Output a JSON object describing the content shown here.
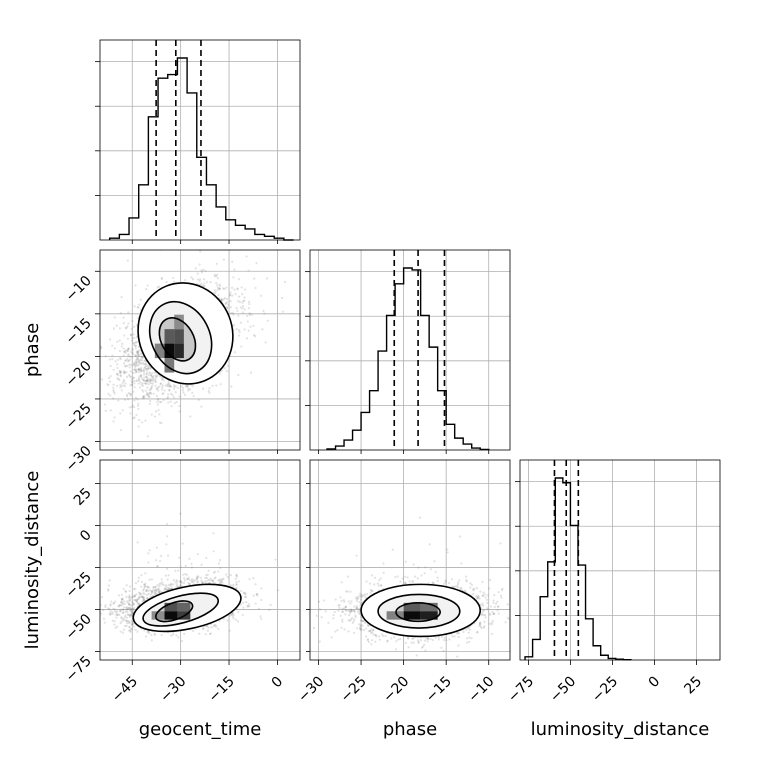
{
  "chart_data": {
    "type": "corner",
    "parameters": [
      "geocent_time",
      "phase",
      "luminosity_distance"
    ],
    "axes": {
      "geocent_time": {
        "range": [
          -55,
          7
        ],
        "ticks": [
          -45,
          -30,
          -15,
          0
        ],
        "tick_labels": [
          "−45",
          "−30",
          "−15",
          "0"
        ]
      },
      "phase": {
        "range": [
          -31,
          -7.5
        ],
        "ticks": [
          -30,
          -25,
          -20,
          -15,
          -10
        ],
        "tick_labels": [
          "−30",
          "−25",
          "−20",
          "−15",
          "−10"
        ]
      },
      "luminosity_distance": {
        "range": [
          -80,
          39
        ],
        "ticks": [
          -75,
          -50,
          -25,
          0,
          25
        ],
        "tick_labels": [
          "−75",
          "−50",
          "−25",
          "0",
          "25"
        ]
      }
    },
    "histograms": [
      {
        "parameter": "geocent_time",
        "bin_edges": [
          -52,
          -49,
          -46,
          -43,
          -40,
          -37,
          -34,
          -31,
          -28,
          -25,
          -22,
          -19,
          -16,
          -13,
          -10,
          -7,
          -4,
          -1,
          2,
          5
        ],
        "counts": [
          1,
          3,
          12,
          30,
          67,
          88,
          90,
          99,
          80,
          45,
          30,
          18,
          11,
          8,
          6,
          3,
          2,
          1,
          0
        ],
        "quantiles": [
          -37.6,
          -31.5,
          -23.7
        ]
      },
      {
        "parameter": "phase",
        "bin_edges": [
          -29,
          -28,
          -27,
          -26,
          -25,
          -24,
          -23,
          -22,
          -21,
          -20,
          -19,
          -18,
          -17,
          -16,
          -15,
          -14,
          -13,
          -12,
          -11,
          -10
        ],
        "counts": [
          0.5,
          2,
          5,
          10,
          19,
          30,
          50,
          68,
          84,
          92,
          91,
          68,
          52,
          30,
          13,
          6,
          3,
          1,
          0.3
        ],
        "quantiles": [
          -21.1,
          -18.3,
          -15.2
        ]
      },
      {
        "parameter": "luminosity_distance",
        "bin_edges": [
          -77,
          -72.5,
          -68,
          -63.5,
          -59,
          -54.5,
          -50,
          -45.5,
          -41,
          -36.5,
          -32,
          -27.5,
          -23,
          -18.5,
          -14
        ],
        "counts": [
          2,
          13,
          40,
          62,
          115,
          112,
          85,
          60,
          26,
          9,
          3,
          1,
          0.5,
          0.2
        ],
        "quantiles": [
          -59.5,
          -52.5,
          -45.3
        ]
      }
    ],
    "density_2d": [
      {
        "x": "geocent_time",
        "y": "phase",
        "cloud": {
          "mean": [
            -31,
            -18.3
          ],
          "sigma": [
            8.5,
            3.2
          ],
          "correlation": 0.45,
          "count": 2600
        },
        "peak_cells": [
          {
            "x": [
              -35,
              -32
            ],
            "y": [
              -18.5,
              -16.8
            ],
            "level": 0.55
          },
          {
            "x": [
              -32,
              -29
            ],
            "y": [
              -18.5,
              -16.8
            ],
            "level": 0.6
          },
          {
            "x": [
              -35,
              -32
            ],
            "y": [
              -20.2,
              -18.5
            ],
            "level": 0.95
          },
          {
            "x": [
              -32,
              -29
            ],
            "y": [
              -20.2,
              -18.5
            ],
            "level": 0.8
          },
          {
            "x": [
              -38,
              -35
            ],
            "y": [
              -20.2,
              -18.5
            ],
            "level": 0.35
          },
          {
            "x": [
              -32,
              -29
            ],
            "y": [
              -16.8,
              -15.1
            ],
            "level": 0.3
          },
          {
            "x": [
              -35,
              -32
            ],
            "y": [
              -21.9,
              -20.2
            ],
            "level": 0.4
          }
        ],
        "contours": [
          {
            "center": [
              -31,
              -18
            ],
            "rx": 5,
            "ry": 2.7,
            "angle_deg": 30
          },
          {
            "center": [
              -30,
              -17.8
            ],
            "rx": 9,
            "ry": 4.4,
            "angle_deg": 27
          },
          {
            "center": [
              -28.5,
              -17.3
            ],
            "rx": 14.5,
            "ry": 6,
            "angle_deg": 22
          }
        ]
      },
      {
        "x": "geocent_time",
        "y": "luminosity_distance",
        "cloud": {
          "mean": [
            -30,
            -47
          ],
          "sigma": [
            9,
            7
          ],
          "correlation": 0.3,
          "count": 2600
        },
        "peak_cells": [
          {
            "x": [
              -35,
              -31
            ],
            "y": [
              -51,
              -46
            ],
            "level": 0.6
          },
          {
            "x": [
              -31,
              -27
            ],
            "y": [
              -51,
              -46
            ],
            "level": 0.5
          },
          {
            "x": [
              -35,
              -31
            ],
            "y": [
              -56,
              -51
            ],
            "level": 0.95
          },
          {
            "x": [
              -31,
              -27
            ],
            "y": [
              -56,
              -51
            ],
            "level": 0.7
          },
          {
            "x": [
              -39,
              -35
            ],
            "y": [
              -56,
              -51
            ],
            "level": 0.3
          }
        ],
        "contours": [
          {
            "center": [
              -32,
              -51
            ],
            "rx": 6,
            "ry": 5,
            "angle_deg": 20
          },
          {
            "center": [
              -30,
              -50
            ],
            "rx": 12,
            "ry": 8,
            "angle_deg": 15
          },
          {
            "center": [
              -28,
              -49
            ],
            "rx": 17,
            "ry": 12.5,
            "angle_deg": 12
          }
        ]
      },
      {
        "x": "phase",
        "y": "luminosity_distance",
        "cloud": {
          "mean": [
            -18.3,
            -51
          ],
          "sigma": [
            3.5,
            7.5
          ],
          "correlation": 0.05,
          "count": 2600
        },
        "peak_cells": [
          {
            "x": [
              -20,
              -18
            ],
            "y": [
              -51,
              -46
            ],
            "level": 0.55
          },
          {
            "x": [
              -18,
              -16
            ],
            "y": [
              -51,
              -46
            ],
            "level": 0.45
          },
          {
            "x": [
              -20,
              -18
            ],
            "y": [
              -56,
              -51
            ],
            "level": 0.95
          },
          {
            "x": [
              -18,
              -16
            ],
            "y": [
              -56,
              -51
            ],
            "level": 0.85
          },
          {
            "x": [
              -22,
              -20
            ],
            "y": [
              -56,
              -51
            ],
            "level": 0.35
          }
        ],
        "contours": [
          {
            "center": [
              -18.3,
              -51.5
            ],
            "rx": 2.6,
            "ry": 5.5,
            "angle_deg": 0
          },
          {
            "center": [
              -18.2,
              -51
            ],
            "rx": 4.8,
            "ry": 10,
            "angle_deg": 0
          },
          {
            "center": [
              -18,
              -50.5
            ],
            "rx": 7,
            "ry": 15.5,
            "angle_deg": 0
          }
        ]
      }
    ],
    "grid": true
  }
}
